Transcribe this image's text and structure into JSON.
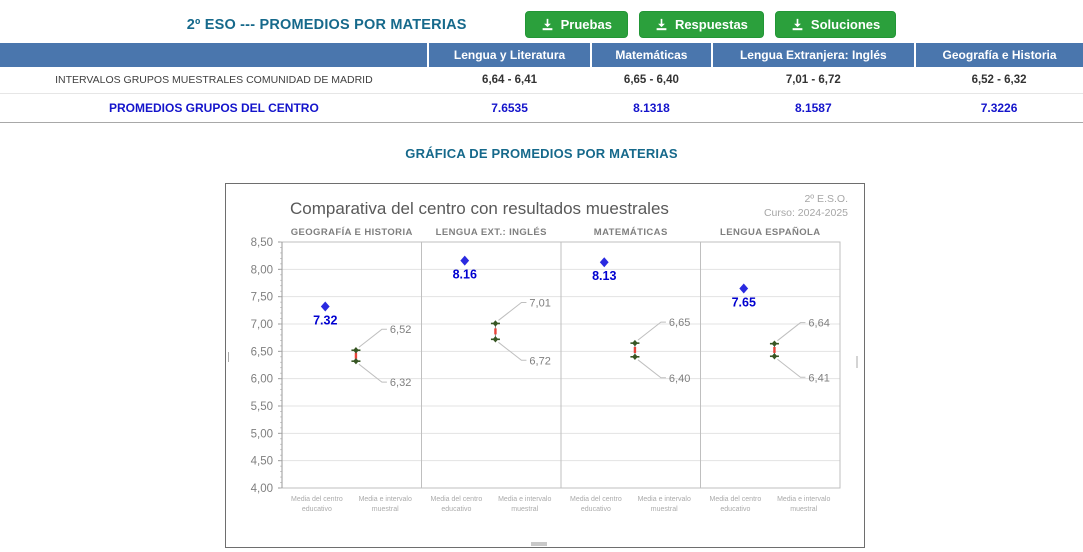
{
  "colors": {
    "accent_teal": "#16698b",
    "table_header_bg": "#4a76ad",
    "center_row_blue": "#1414cb",
    "button_green": "#2ba03c",
    "chart_point_blue": "#2a2ae0",
    "chart_label_blue": "#0000d0",
    "interval_green": "#375623",
    "interval_red": "#e8443a"
  },
  "header": {
    "title": "2º ESO --- PROMEDIOS POR MATERIAS",
    "buttons": [
      {
        "label": "Pruebas"
      },
      {
        "label": "Respuestas"
      },
      {
        "label": "Soluciones"
      }
    ]
  },
  "table": {
    "headers": [
      "",
      "Lengua y Literatura",
      "Matemáticas",
      "Lengua Extranjera: Inglés",
      "Geografía e Historia"
    ],
    "rows": [
      {
        "label": "INTERVALOS GRUPOS MUESTRALES COMUNIDAD DE MADRID",
        "values": [
          "6,64 - 6,41",
          "6,65 - 6,40",
          "7,01 - 6,72",
          "6,52 - 6,32"
        ]
      },
      {
        "label": "PROMEDIOS GRUPOS DEL CENTRO",
        "values": [
          "7.6535",
          "8.1318",
          "8.1587",
          "7.3226"
        ]
      }
    ]
  },
  "section_title": "GRÁFICA DE PROMEDIOS POR MATERIAS",
  "chart_data": {
    "type": "scatter",
    "title": "Comparativa del centro con resultados muestrales",
    "annotation_lines": [
      "2º E.S.O.",
      "Curso: 2024-2025"
    ],
    "ylim": [
      4.0,
      8.5
    ],
    "ytick_step": 0.5,
    "grid": true,
    "x_categories": [
      [
        "Media del centro",
        "educativo"
      ],
      [
        "Media e intervalo",
        "muestral"
      ]
    ],
    "panels": [
      {
        "subject": "GEOGRAFÍA E HISTORIA",
        "center_mean": 7.32,
        "center_label": "7.32",
        "interval_high": 6.52,
        "interval_low": 6.32,
        "interval_high_label": "6,52",
        "interval_low_label": "6,32"
      },
      {
        "subject": "LENGUA EXT.: INGLÉS",
        "center_mean": 8.16,
        "center_label": "8.16",
        "interval_high": 7.01,
        "interval_low": 6.72,
        "interval_high_label": "7,01",
        "interval_low_label": "6,72"
      },
      {
        "subject": "MATEMÁTICAS",
        "center_mean": 8.13,
        "center_label": "8.13",
        "interval_high": 6.65,
        "interval_low": 6.4,
        "interval_high_label": "6,65",
        "interval_low_label": "6,40"
      },
      {
        "subject": "LENGUA ESPAÑOLA",
        "center_mean": 7.65,
        "center_label": "7.65",
        "interval_high": 6.64,
        "interval_low": 6.41,
        "interval_high_label": "6,64",
        "interval_low_label": "6,41"
      }
    ]
  }
}
